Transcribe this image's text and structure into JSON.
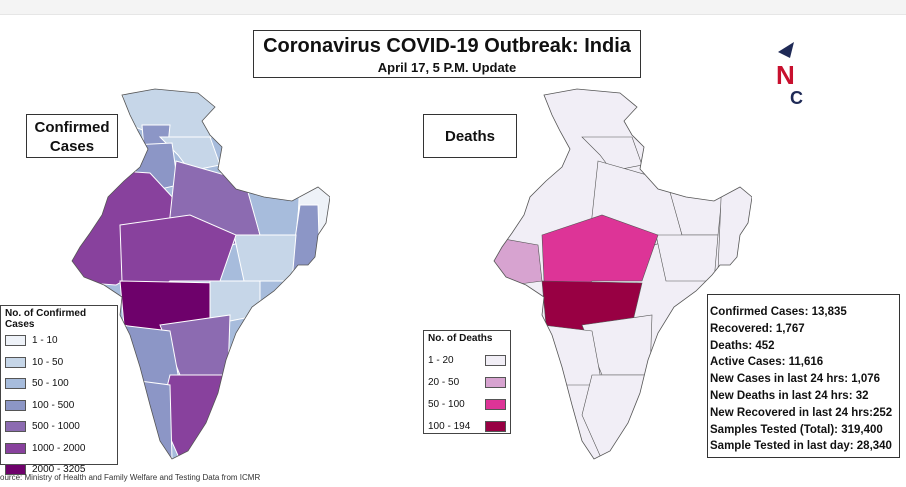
{
  "title": {
    "main": "Coronavirus COVID-19 Outbreak: India",
    "sub": "April 17, 5 P.M. Update"
  },
  "logo": {
    "letters": [
      "N",
      "C"
    ],
    "colors": {
      "navy": "#1f2a56",
      "red": "#c8102e"
    }
  },
  "maps": {
    "confirmed": {
      "label": "Confirmed Cases"
    },
    "deaths": {
      "label": "Deaths"
    }
  },
  "legend_confirmed": {
    "title": "No. of Confirmed Cases",
    "items": [
      {
        "label": "1 - 10",
        "color": "#eef2f8"
      },
      {
        "label": "10 - 50",
        "color": "#c6d6e8"
      },
      {
        "label": "50 - 100",
        "color": "#a7bcdc"
      },
      {
        "label": "100 - 500",
        "color": "#8c96c6"
      },
      {
        "label": "500 - 1000",
        "color": "#8c6bb1"
      },
      {
        "label": "1000 - 2000",
        "color": "#88419d"
      },
      {
        "label": "2000 - 3205",
        "color": "#6e016b"
      }
    ]
  },
  "legend_deaths": {
    "title": "No. of Deaths",
    "items": [
      {
        "label": "1 - 20",
        "color": "#f1eef6"
      },
      {
        "label": "20 - 50",
        "color": "#d7a3d0"
      },
      {
        "label": "50 - 100",
        "color": "#dd3497"
      },
      {
        "label": "100 - 194",
        "color": "#980043"
      }
    ]
  },
  "stats": [
    "Confirmed Cases: 13,835",
    "Recovered: 1,767",
    "Deaths: 452",
    "Active Cases: 11,616",
    "New Cases in last 24 hrs: 1,076",
    "New Deaths in last 24 hrs: 32",
    "New Recovered in last 24 hrs:252",
    "Samples Tested (Total): 319,400",
    "Sample Tested in last day: 28,340"
  ],
  "source": "ource: Ministry of Health and Family Welfare and Testing Data from ICMR"
}
